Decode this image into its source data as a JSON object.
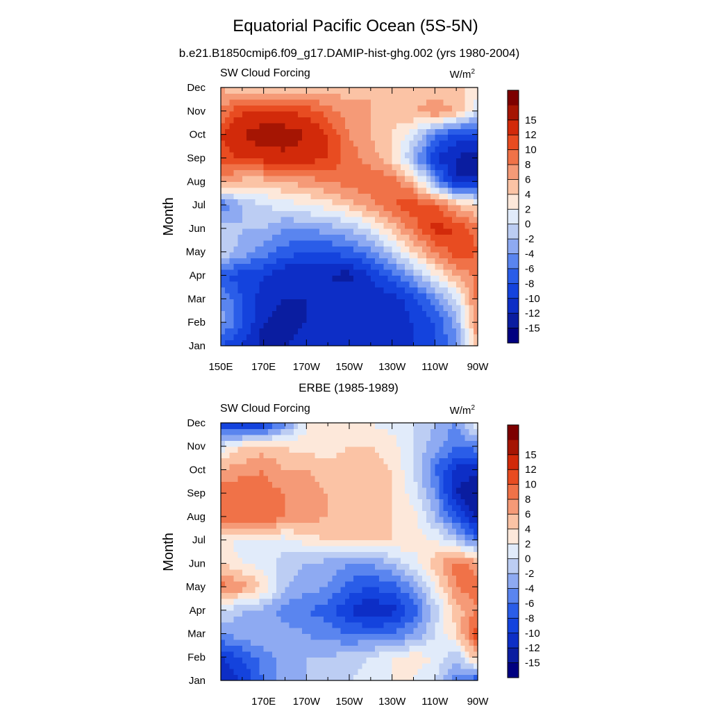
{
  "figure": {
    "title": "Equatorial Pacific Ocean (5S-5N)",
    "subtitle": "b.e21.B1850cmip6.f09_g17.DAMIP-hist-ghg.002 (yrs 1980-2004)"
  },
  "colorbar": {
    "colors": [
      "#000080",
      "#0a1da0",
      "#0d2ec6",
      "#1443dd",
      "#2a5de8",
      "#5a85ef",
      "#8eaaf2",
      "#bccdf3",
      "#e1ebfa",
      "#fde8da",
      "#fbc3a5",
      "#f59a77",
      "#f07248",
      "#e84c21",
      "#d22a0a",
      "#a51503",
      "#7d0000"
    ],
    "labels": [
      "-15",
      "-12",
      "-10",
      "-8",
      "-6",
      "-4",
      "-2",
      "0",
      "2",
      "4",
      "6",
      "8",
      "10",
      "12",
      "15"
    ]
  },
  "chart_data": [
    {
      "type": "heatmap",
      "panel_title": "",
      "left_label": "SW Cloud Forcing",
      "units_text": "W/m",
      "units_superscript": "2",
      "ylabel": "Month",
      "y_ticks": [
        "Jan",
        "Feb",
        "Mar",
        "Apr",
        "May",
        "Jun",
        "Jul",
        "Aug",
        "Sep",
        "Oct",
        "Nov",
        "Dec"
      ],
      "x_ticks": [
        "150E",
        "170E",
        "170W",
        "150W",
        "130W",
        "110W",
        "90W"
      ],
      "x_range": [
        "150E",
        "90W"
      ],
      "levels": [
        -15,
        -12,
        -10,
        -8,
        -6,
        -4,
        -2,
        0,
        2,
        4,
        6,
        8,
        10,
        12,
        15
      ],
      "longitudes": [
        150,
        160,
        170,
        180,
        190,
        200,
        210,
        220,
        230,
        240,
        250,
        260,
        270
      ],
      "months": [
        "Jan",
        "Feb",
        "Mar",
        "Apr",
        "May",
        "Jun",
        "Jul",
        "Aug",
        "Sep",
        "Oct",
        "Nov",
        "Dec"
      ],
      "z": [
        [
          -8,
          -10,
          -13,
          -12,
          -11,
          -11,
          -12,
          -11,
          -10,
          -10,
          -8,
          -5,
          6
        ],
        [
          -3,
          -8,
          -12,
          -13,
          -12,
          -11,
          -12,
          -12,
          -11,
          -10,
          -8,
          -3,
          8
        ],
        [
          -4,
          -8,
          -11,
          -12,
          -12,
          -11,
          -10,
          -11,
          -11,
          -9,
          -5,
          0,
          9
        ],
        [
          -8,
          -9,
          -10,
          -12,
          -12,
          -12,
          -13,
          -10,
          -7,
          -3,
          2,
          6,
          9
        ],
        [
          0,
          -3,
          -5,
          -7,
          -8,
          -8,
          -7,
          -5,
          -1,
          4,
          8,
          11,
          10
        ],
        [
          -1,
          -2,
          -2,
          -4,
          -4,
          -3,
          -2,
          1,
          5,
          9,
          13,
          12,
          9
        ],
        [
          -6,
          -2,
          0,
          1,
          2,
          3,
          5,
          7,
          10,
          11,
          10,
          6,
          3
        ],
        [
          7,
          5,
          5,
          6,
          7,
          8,
          9,
          10,
          9,
          6,
          -4,
          -12,
          -11
        ],
        [
          11,
          12,
          13,
          14,
          13,
          12,
          9,
          7,
          4,
          -3,
          -10,
          -12,
          -14
        ],
        [
          12,
          15,
          17,
          17,
          15,
          12,
          8,
          6,
          4,
          1,
          -6,
          -9,
          -9
        ],
        [
          8,
          12,
          12,
          12,
          11,
          9,
          7,
          6,
          5,
          6,
          8,
          6,
          0
        ],
        [
          6,
          4,
          5,
          5,
          5,
          5,
          5,
          6,
          5,
          4,
          4,
          4,
          4
        ]
      ]
    },
    {
      "type": "heatmap",
      "panel_title": "ERBE (1985-1989)",
      "left_label": "SW Cloud Forcing",
      "units_text": "W/m",
      "units_superscript": "2",
      "ylabel": "Month",
      "y_ticks": [
        "Jan",
        "Feb",
        "Mar",
        "Apr",
        "May",
        "Jun",
        "Jul",
        "Aug",
        "Sep",
        "Oct",
        "Nov",
        "Dec"
      ],
      "x_ticks": [
        "170E",
        "170W",
        "150W",
        "130W",
        "110W",
        "90W"
      ],
      "x_range": [
        "150E",
        "90W"
      ],
      "levels": [
        -15,
        -12,
        -10,
        -8,
        -6,
        -4,
        -2,
        0,
        2,
        4,
        6,
        8,
        10,
        12,
        15
      ],
      "longitudes": [
        150,
        160,
        170,
        180,
        190,
        200,
        210,
        220,
        230,
        240,
        250,
        260,
        270
      ],
      "months": [
        "Jan",
        "Feb",
        "Mar",
        "Apr",
        "May",
        "Jun",
        "Jul",
        "Aug",
        "Sep",
        "Oct",
        "Nov",
        "Dec"
      ],
      "z": [
        [
          -12,
          -10,
          -6,
          -3,
          -2,
          -1,
          0,
          1,
          2,
          2,
          0,
          -5,
          -8
        ],
        [
          -10,
          -8,
          -5,
          -3,
          -2,
          -2,
          -1,
          0,
          2,
          3,
          2,
          -2,
          6
        ],
        [
          -4,
          -3,
          -2,
          -3,
          -4,
          -5,
          -6,
          -6,
          -6,
          -4,
          0,
          4,
          12
        ],
        [
          0,
          -2,
          -3,
          -5,
          -6,
          -7,
          -10,
          -12,
          -11,
          -7,
          -1,
          5,
          8
        ],
        [
          9,
          7,
          4,
          -2,
          -3,
          -4,
          -7,
          -8,
          -7,
          -4,
          2,
          8,
          9
        ],
        [
          4,
          2,
          1,
          -1,
          -2,
          -3,
          -4,
          -4,
          -2,
          1,
          5,
          9,
          7
        ],
        [
          3,
          1,
          2,
          1,
          3,
          4,
          5,
          5,
          4,
          3,
          2,
          -1,
          -6
        ],
        [
          9,
          9,
          10,
          8,
          7,
          6,
          6,
          5,
          4,
          3,
          -2,
          -8,
          -13
        ],
        [
          10,
          10,
          9,
          8,
          7,
          6,
          5,
          5,
          4,
          1,
          -4,
          -12,
          -15
        ],
        [
          6,
          7,
          8,
          6,
          6,
          5,
          5,
          5,
          4,
          0,
          -6,
          -11,
          -11
        ],
        [
          1,
          4,
          5,
          4,
          3,
          3,
          4,
          4,
          3,
          0,
          -3,
          -6,
          -5
        ],
        [
          -10,
          -12,
          -10,
          -5,
          2,
          3,
          3,
          2,
          1,
          0,
          -2,
          -4,
          2
        ]
      ]
    }
  ]
}
